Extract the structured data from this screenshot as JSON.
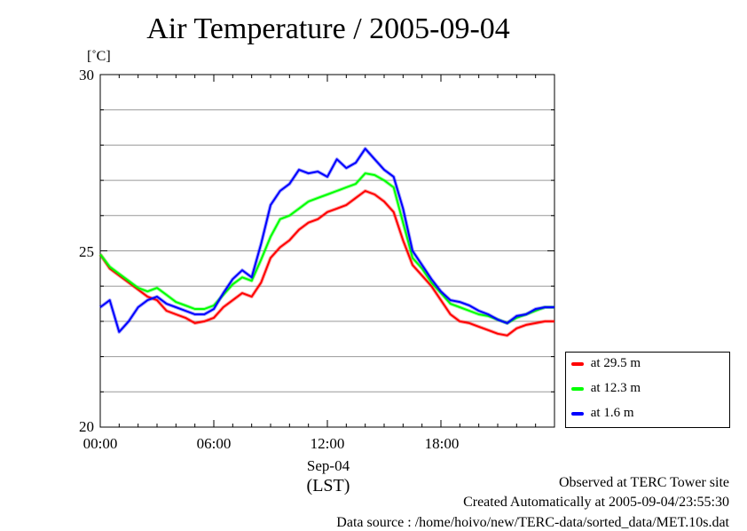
{
  "chart_data": {
    "type": "line",
    "title": "Air Temperature / 2005-09-04",
    "ylabel": "[˚C]",
    "ylim": [
      20,
      30
    ],
    "y_ticks": [
      "30",
      "25",
      "20"
    ],
    "xlim": [
      0,
      24
    ],
    "x_ticks": [
      "00:00",
      "06:00",
      "12:00",
      "18:00"
    ],
    "x_tick_values": [
      0,
      6,
      12,
      18
    ],
    "x_date_label": "Sep-04",
    "x_timezone_label": "(LST)",
    "grid": true,
    "legend_position": "bottom-right-outside",
    "x": [
      0,
      0.5,
      1,
      1.5,
      2,
      2.5,
      3,
      3.5,
      4,
      4.5,
      5,
      5.5,
      6,
      6.5,
      7,
      7.5,
      8,
      8.5,
      9,
      9.5,
      10,
      10.5,
      11,
      11.5,
      12,
      12.5,
      13,
      13.5,
      14,
      14.5,
      15,
      15.5,
      16,
      16.5,
      17,
      17.5,
      18,
      18.5,
      19,
      19.5,
      20,
      20.5,
      21,
      21.5,
      22,
      22.5,
      23,
      23.5,
      24
    ],
    "series": [
      {
        "name": "at 29.5 m",
        "color": "#ff0000",
        "values": [
          24.9,
          24.5,
          24.3,
          24.1,
          23.9,
          23.7,
          23.6,
          23.3,
          23.2,
          23.1,
          22.95,
          23.0,
          23.1,
          23.4,
          23.6,
          23.8,
          23.7,
          24.1,
          24.8,
          25.1,
          25.3,
          25.6,
          25.8,
          25.9,
          26.1,
          26.2,
          26.3,
          26.5,
          26.7,
          26.6,
          26.4,
          26.1,
          25.3,
          24.6,
          24.3,
          24.0,
          23.6,
          23.2,
          23.0,
          22.95,
          22.85,
          22.75,
          22.65,
          22.6,
          22.8,
          22.9,
          22.95,
          23.0,
          23.0
        ]
      },
      {
        "name": "at 12.3 m",
        "color": "#00ff00",
        "values": [
          24.9,
          24.55,
          24.35,
          24.15,
          23.95,
          23.85,
          23.95,
          23.75,
          23.55,
          23.45,
          23.35,
          23.35,
          23.45,
          23.75,
          24.05,
          24.25,
          24.15,
          24.75,
          25.4,
          25.9,
          26.0,
          26.2,
          26.4,
          26.5,
          26.6,
          26.7,
          26.8,
          26.9,
          27.2,
          27.15,
          27.0,
          26.8,
          25.8,
          24.8,
          24.5,
          24.1,
          23.8,
          23.5,
          23.4,
          23.3,
          23.2,
          23.15,
          23.05,
          22.95,
          23.1,
          23.2,
          23.3,
          23.4,
          23.4
        ]
      },
      {
        "name": "at 1.6 m",
        "color": "#0000ff",
        "values": [
          23.4,
          23.6,
          22.7,
          23.0,
          23.4,
          23.6,
          23.7,
          23.5,
          23.4,
          23.3,
          23.2,
          23.2,
          23.35,
          23.8,
          24.2,
          24.45,
          24.25,
          25.2,
          26.3,
          26.7,
          26.9,
          27.3,
          27.2,
          27.25,
          27.1,
          27.6,
          27.35,
          27.5,
          27.9,
          27.6,
          27.3,
          27.1,
          26.2,
          25.0,
          24.6,
          24.2,
          23.85,
          23.6,
          23.55,
          23.45,
          23.3,
          23.2,
          23.05,
          22.95,
          23.15,
          23.2,
          23.35,
          23.4,
          23.4
        ]
      }
    ]
  },
  "footer": {
    "line1": "Observed at TERC Tower site",
    "line2": "Created Automatically at 2005-09-04/23:55:30",
    "line3": "Data source : /home/hoivo/new/TERC-data/sorted_data/MET.10s.dat"
  }
}
